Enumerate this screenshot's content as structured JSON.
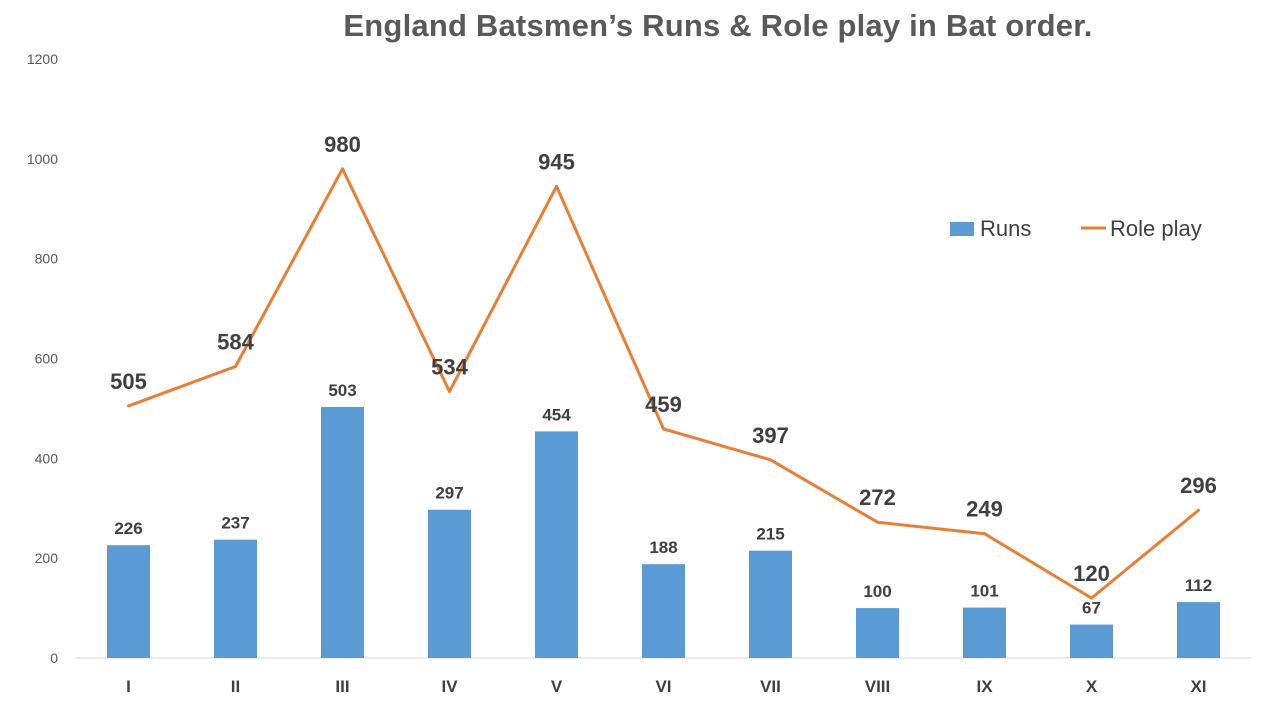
{
  "chart_data": {
    "type": "bar",
    "title": "England Batsmen’s Runs & Role play in Bat order.",
    "categories": [
      "I",
      "II",
      "III",
      "IV",
      "V",
      "VI",
      "VII",
      "VIII",
      "IX",
      "X",
      "XI"
    ],
    "series": [
      {
        "name": "Runs",
        "type": "bar",
        "color": "#5B9BD5",
        "values": [
          226,
          237,
          503,
          297,
          454,
          188,
          215,
          100,
          101,
          67,
          112
        ]
      },
      {
        "name": "Role play",
        "type": "line",
        "color": "#ED7D31",
        "values": [
          505,
          584,
          980,
          534,
          945,
          459,
          397,
          272,
          249,
          120,
          296
        ]
      }
    ],
    "ylim": [
      0,
      1200
    ],
    "yticks": [
      "0",
      "200",
      "400",
      "600",
      "800",
      "1000",
      "1200"
    ],
    "grid": false,
    "legend_position": "top-right",
    "xlabel": "",
    "ylabel": ""
  }
}
